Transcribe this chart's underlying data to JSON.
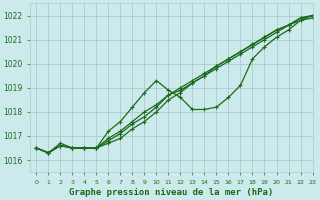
{
  "title": "Graphe pression niveau de la mer (hPa)",
  "background_color": "#cce9ec",
  "grid_color": "#aacccc",
  "line_color": "#1a6b1a",
  "xlim": [
    -0.5,
    23
  ],
  "ylim": [
    1015.5,
    1022.5
  ],
  "yticks": [
    1016,
    1017,
    1018,
    1019,
    1020,
    1021,
    1022
  ],
  "xticks": [
    0,
    1,
    2,
    3,
    4,
    5,
    6,
    7,
    8,
    9,
    10,
    11,
    12,
    13,
    14,
    15,
    16,
    17,
    18,
    19,
    20,
    21,
    22,
    23
  ],
  "x_all": [
    0,
    1,
    2,
    3,
    4,
    5,
    6,
    7,
    8,
    9,
    10,
    11,
    12,
    13,
    14,
    15,
    16,
    17,
    18,
    19,
    20,
    21,
    22,
    23
  ],
  "series": [
    {
      "x": [
        0,
        1,
        2,
        3,
        4,
        5,
        6,
        7,
        8,
        9,
        10,
        11,
        12,
        13,
        14,
        15,
        16,
        17,
        18,
        19,
        20,
        21,
        22,
        23
      ],
      "y": [
        1016.5,
        1016.3,
        1016.6,
        1016.5,
        1016.5,
        1016.5,
        1016.8,
        1017.1,
        1017.5,
        1017.8,
        1018.2,
        1018.7,
        1018.9,
        1019.2,
        1019.5,
        1019.8,
        1020.1,
        1020.4,
        1020.7,
        1021.0,
        1021.3,
        1021.6,
        1021.8,
        1021.9
      ]
    },
    {
      "x": [
        0,
        1,
        2,
        3,
        4,
        5,
        6,
        7,
        8,
        9,
        10,
        11,
        12,
        13,
        14,
        15,
        16,
        17,
        18,
        19,
        20,
        21,
        22,
        23
      ],
      "y": [
        1016.5,
        1016.3,
        1016.6,
        1016.5,
        1016.5,
        1016.5,
        1016.9,
        1017.2,
        1017.6,
        1018.0,
        1018.3,
        1018.7,
        1019.0,
        1019.3,
        1019.6,
        1019.9,
        1020.2,
        1020.5,
        1020.8,
        1021.1,
        1021.4,
        1021.6,
        1021.9,
        1022.0
      ]
    },
    {
      "x": [
        0,
        1,
        2,
        3,
        4,
        5,
        6,
        7,
        8,
        9,
        10,
        11,
        12,
        13,
        14,
        15,
        16,
        17,
        18,
        19,
        20,
        21,
        22,
        23
      ],
      "y": [
        1016.5,
        1016.3,
        1016.6,
        1016.5,
        1016.5,
        1016.5,
        1016.7,
        1016.9,
        1017.3,
        1017.6,
        1018.0,
        1018.5,
        1018.8,
        1019.2,
        1019.5,
        1019.9,
        1020.2,
        1020.5,
        1020.8,
        1021.1,
        1021.4,
        1021.6,
        1021.9,
        1022.0
      ]
    },
    {
      "x": [
        0,
        1,
        2,
        3,
        4,
        5,
        6,
        7,
        8,
        9,
        10,
        11,
        12,
        13,
        14,
        15,
        16,
        17,
        18,
        19,
        20,
        21,
        22,
        23
      ],
      "y": [
        1016.5,
        1016.3,
        1016.7,
        1016.5,
        1016.5,
        1016.5,
        1017.2,
        1017.6,
        1018.2,
        1018.8,
        1019.3,
        1018.9,
        1018.6,
        1018.1,
        1018.1,
        1018.2,
        1018.6,
        1019.1,
        1020.2,
        1020.7,
        1021.1,
        1021.4,
        1021.8,
        1022.0
      ]
    }
  ]
}
